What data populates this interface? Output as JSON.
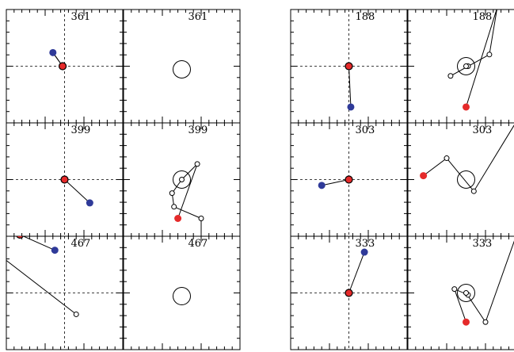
{
  "grids": [
    {
      "name": "left-grid",
      "panels": [
        {
          "label": "361",
          "kind": "track",
          "points": [
            [
              -6,
              7,
              "o"
            ],
            [
              -6,
              7,
              "o"
            ]
          ],
          "red": [
            -1,
            0
          ],
          "blue": [
            -6,
            7
          ]
        },
        {
          "label": "361",
          "kind": "circle"
        },
        {
          "label": "399",
          "kind": "track",
          "points": [],
          "red": [
            0,
            0
          ],
          "blue": [
            13,
            -12
          ]
        },
        {
          "label": "399",
          "kind": "track",
          "points": [
            [
              8,
              8,
              "o"
            ],
            [
              0,
              0,
              "o"
            ],
            [
              -5,
              -7,
              "o"
            ],
            [
              -4,
              -14,
              "o"
            ],
            [
              10,
              -20,
              "o"
            ],
            [
              10,
              -34,
              "-"
            ]
          ],
          "red": [
            -2,
            -20
          ],
          "blue": null,
          "circle": true
        },
        {
          "label": "467",
          "kind": "track",
          "points": [
            [
              -46,
              29,
              "-"
            ],
            [
              6,
              -11,
              "o"
            ]
          ],
          "red": [
            -23,
            30
          ],
          "blue": [
            -5,
            22
          ]
        },
        {
          "label": "467",
          "kind": "circle"
        }
      ]
    },
    {
      "name": "right-grid",
      "panels": [
        {
          "label": "188",
          "kind": "track",
          "points": [],
          "red": [
            0,
            0
          ],
          "blue": [
            1,
            -21
          ]
        },
        {
          "label": "188",
          "kind": "track",
          "points": [
            [
              16,
              30,
              "-"
            ],
            [
              12,
              6,
              "o"
            ],
            [
              -8,
              -5,
              "o"
            ],
            [
              1,
              0,
              "o"
            ],
            [
              0,
              0,
              "o"
            ]
          ],
          "red": [
            0,
            -21
          ],
          "blue": null,
          "circle": true
        },
        {
          "label": "303",
          "kind": "track",
          "points": [],
          "red": [
            0,
            0
          ],
          "blue": [
            -14,
            -3
          ]
        },
        {
          "label": "303",
          "kind": "track",
          "points": [
            [
              -10,
              11,
              "o"
            ],
            [
              4,
              -6,
              "o"
            ],
            [
              26,
              30,
              "-"
            ]
          ],
          "red": [
            -22,
            2
          ],
          "blue": null,
          "circle": true
        },
        {
          "label": "333",
          "kind": "track",
          "points": [],
          "red": [
            0,
            0
          ],
          "blue": [
            8,
            21
          ]
        },
        {
          "label": "333",
          "kind": "track",
          "points": [
            [
              -6,
              2,
              "o"
            ],
            [
              1,
              -1,
              "o"
            ],
            [
              0,
              0,
              "o"
            ],
            [
              10,
              -15,
              "o"
            ],
            [
              26,
              30,
              "-"
            ]
          ],
          "red": [
            0,
            -15
          ],
          "blue": null,
          "circle": true
        }
      ]
    }
  ]
}
